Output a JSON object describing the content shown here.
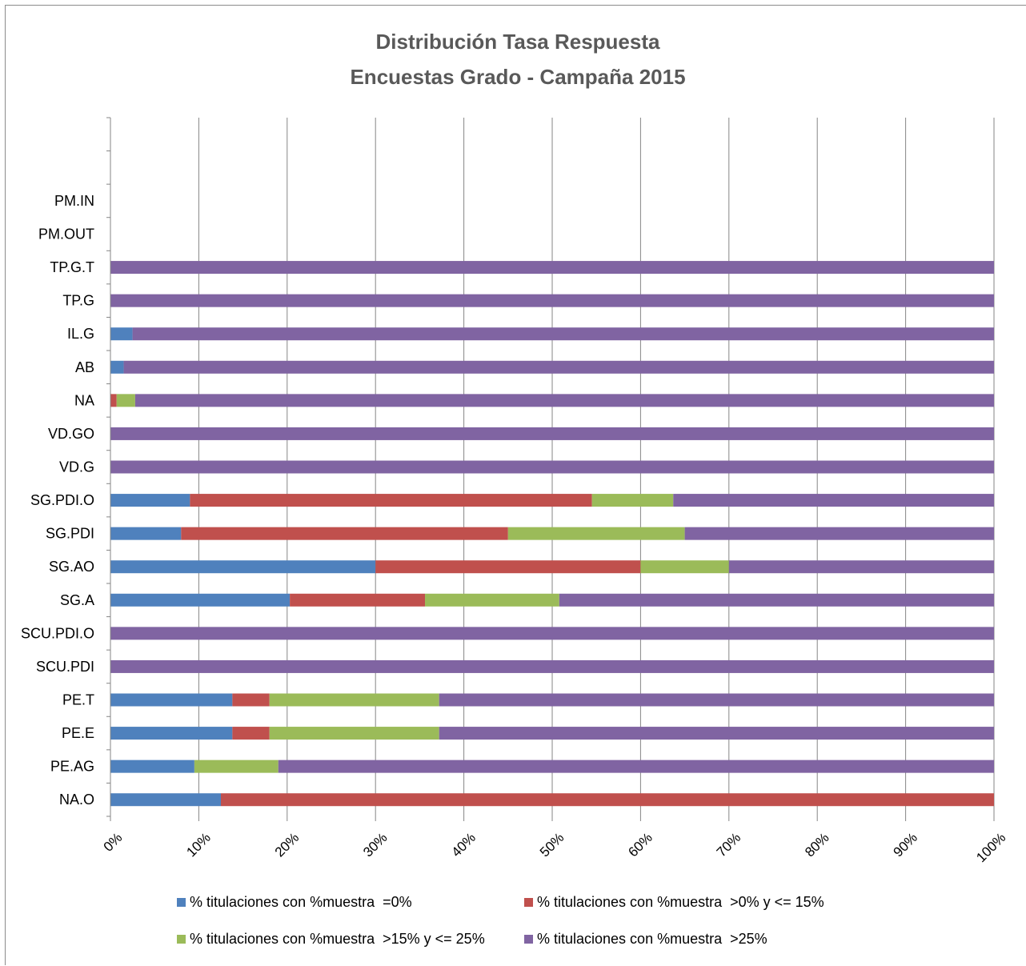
{
  "chart_data": {
    "type": "bar",
    "orientation": "horizontal",
    "stacked": "percent",
    "title": [
      "Distribución Tasa Respuesta",
      "Encuestas Grado - Campaña 2015"
    ],
    "categories": [
      "",
      "",
      "PM.IN",
      "PM.OUT",
      "TP.G.T",
      "TP.G",
      "IL.G",
      "AB",
      "NA",
      "VD.GO",
      "VD.G",
      "SG.PDI.O",
      "SG.PDI",
      "SG.AO",
      "SG.A",
      "SCU.PDI.O",
      "SCU.PDI",
      "PE.T",
      "PE.E",
      "PE.AG",
      "NA.O"
    ],
    "x_ticks": [
      "0%",
      "10%",
      "20%",
      "30%",
      "40%",
      "50%",
      "60%",
      "70%",
      "80%",
      "90%",
      "100%"
    ],
    "xlim": [
      0,
      100
    ],
    "grid": true,
    "legend_position": "bottom",
    "series": [
      {
        "name": "% titulaciones con %muestra  =0%",
        "color": "#4F81BD",
        "values": [
          0,
          0,
          0,
          0,
          0,
          0,
          2.5,
          1.5,
          0,
          0,
          0,
          9,
          8,
          30,
          20.3,
          0,
          0,
          13.8,
          13.8,
          9.5,
          12.5
        ]
      },
      {
        "name": "% titulaciones con %muestra  >0% y <= 15%",
        "color": "#C0504D",
        "values": [
          0,
          0,
          0,
          0,
          0,
          0,
          0,
          0,
          0.7,
          0,
          0,
          45.5,
          37,
          30,
          15.3,
          0,
          0,
          4.2,
          4.2,
          0,
          87.5
        ]
      },
      {
        "name": "% titulaciones con %muestra  >15% y <= 25%",
        "color": "#9BBB59",
        "values": [
          0,
          0,
          0,
          0,
          0,
          0,
          0,
          0,
          2.1,
          0,
          0,
          9.2,
          20,
          10,
          15.2,
          0,
          0,
          19.2,
          19.2,
          9.5,
          0
        ]
      },
      {
        "name": "% titulaciones con %muestra  >25%",
        "color": "#8064A2",
        "values": [
          0,
          0,
          0,
          0,
          100,
          100,
          97.5,
          98.5,
          97.2,
          100,
          100,
          36.3,
          35,
          30,
          49.2,
          100,
          100,
          62.8,
          62.8,
          81,
          0
        ]
      }
    ]
  }
}
